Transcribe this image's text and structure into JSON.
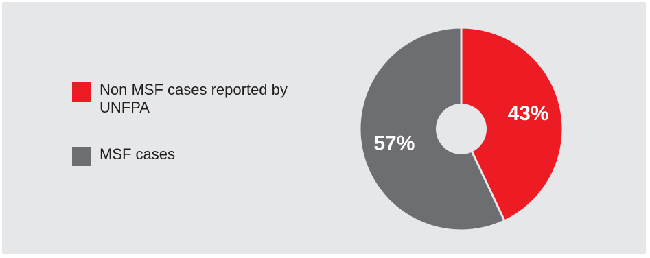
{
  "chart_data": {
    "type": "pie",
    "donut": true,
    "categories": [
      "Non MSF cases reported by UNFPA",
      "MSF cases"
    ],
    "values": [
      43,
      57
    ],
    "value_labels": [
      "43%",
      "57%"
    ],
    "colors": [
      "#ed1c24",
      "#6d6e71"
    ],
    "legend_placement": "left",
    "title": ""
  },
  "legend": {
    "items": [
      {
        "label": "Non MSF cases reported by UNFPA",
        "color": "#ed1c24"
      },
      {
        "label": "MSF cases",
        "color": "#6d6e71"
      }
    ]
  },
  "colors": {
    "background": "#e6e7e8",
    "separator": "#e6e7e8",
    "label_text": "#ffffff"
  }
}
